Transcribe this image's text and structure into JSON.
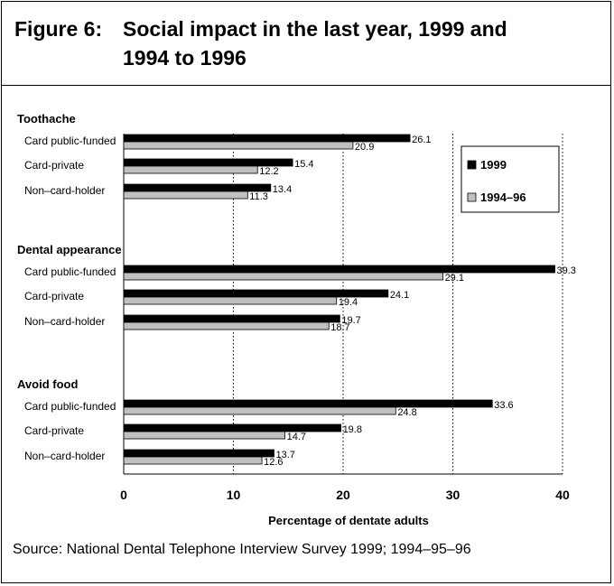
{
  "figure": {
    "label": "Figure 6:",
    "title_line1": "Social impact in the last year, 1999 and",
    "title_line2": "1994 to 1996"
  },
  "source": "Source:  National Dental Telephone Interview Survey 1999; 1994–95–96",
  "chart_data": {
    "type": "bar",
    "orientation": "horizontal",
    "xlabel": "Percentage of dentate adults",
    "xlim": [
      0,
      40
    ],
    "xticks": [
      0,
      10,
      20,
      30,
      40
    ],
    "grid": "vertical dotted",
    "legend_position": "top-right",
    "series": [
      {
        "name": "1999",
        "color": "#000000"
      },
      {
        "name": "1994–96",
        "color": "#c0c0c0"
      }
    ],
    "groups": [
      {
        "name": "Toothache",
        "categories": [
          "Card public-funded",
          "Card-private",
          "Non–card-holder"
        ],
        "values": {
          "1999": [
            26.1,
            15.4,
            13.4
          ],
          "1994–96": [
            20.9,
            12.2,
            11.3
          ]
        }
      },
      {
        "name": "Dental appearance",
        "categories": [
          "Card public-funded",
          "Card-private",
          "Non–card-holder"
        ],
        "values": {
          "1999": [
            39.3,
            24.1,
            19.7
          ],
          "1994–96": [
            29.1,
            19.4,
            18.7
          ]
        }
      },
      {
        "name": "Avoid food",
        "categories": [
          "Card public-funded",
          "Card-private",
          "Non–card-holder"
        ],
        "values": {
          "1999": [
            33.6,
            19.8,
            13.7
          ],
          "1994–96": [
            24.8,
            14.7,
            12.6
          ]
        }
      }
    ]
  }
}
